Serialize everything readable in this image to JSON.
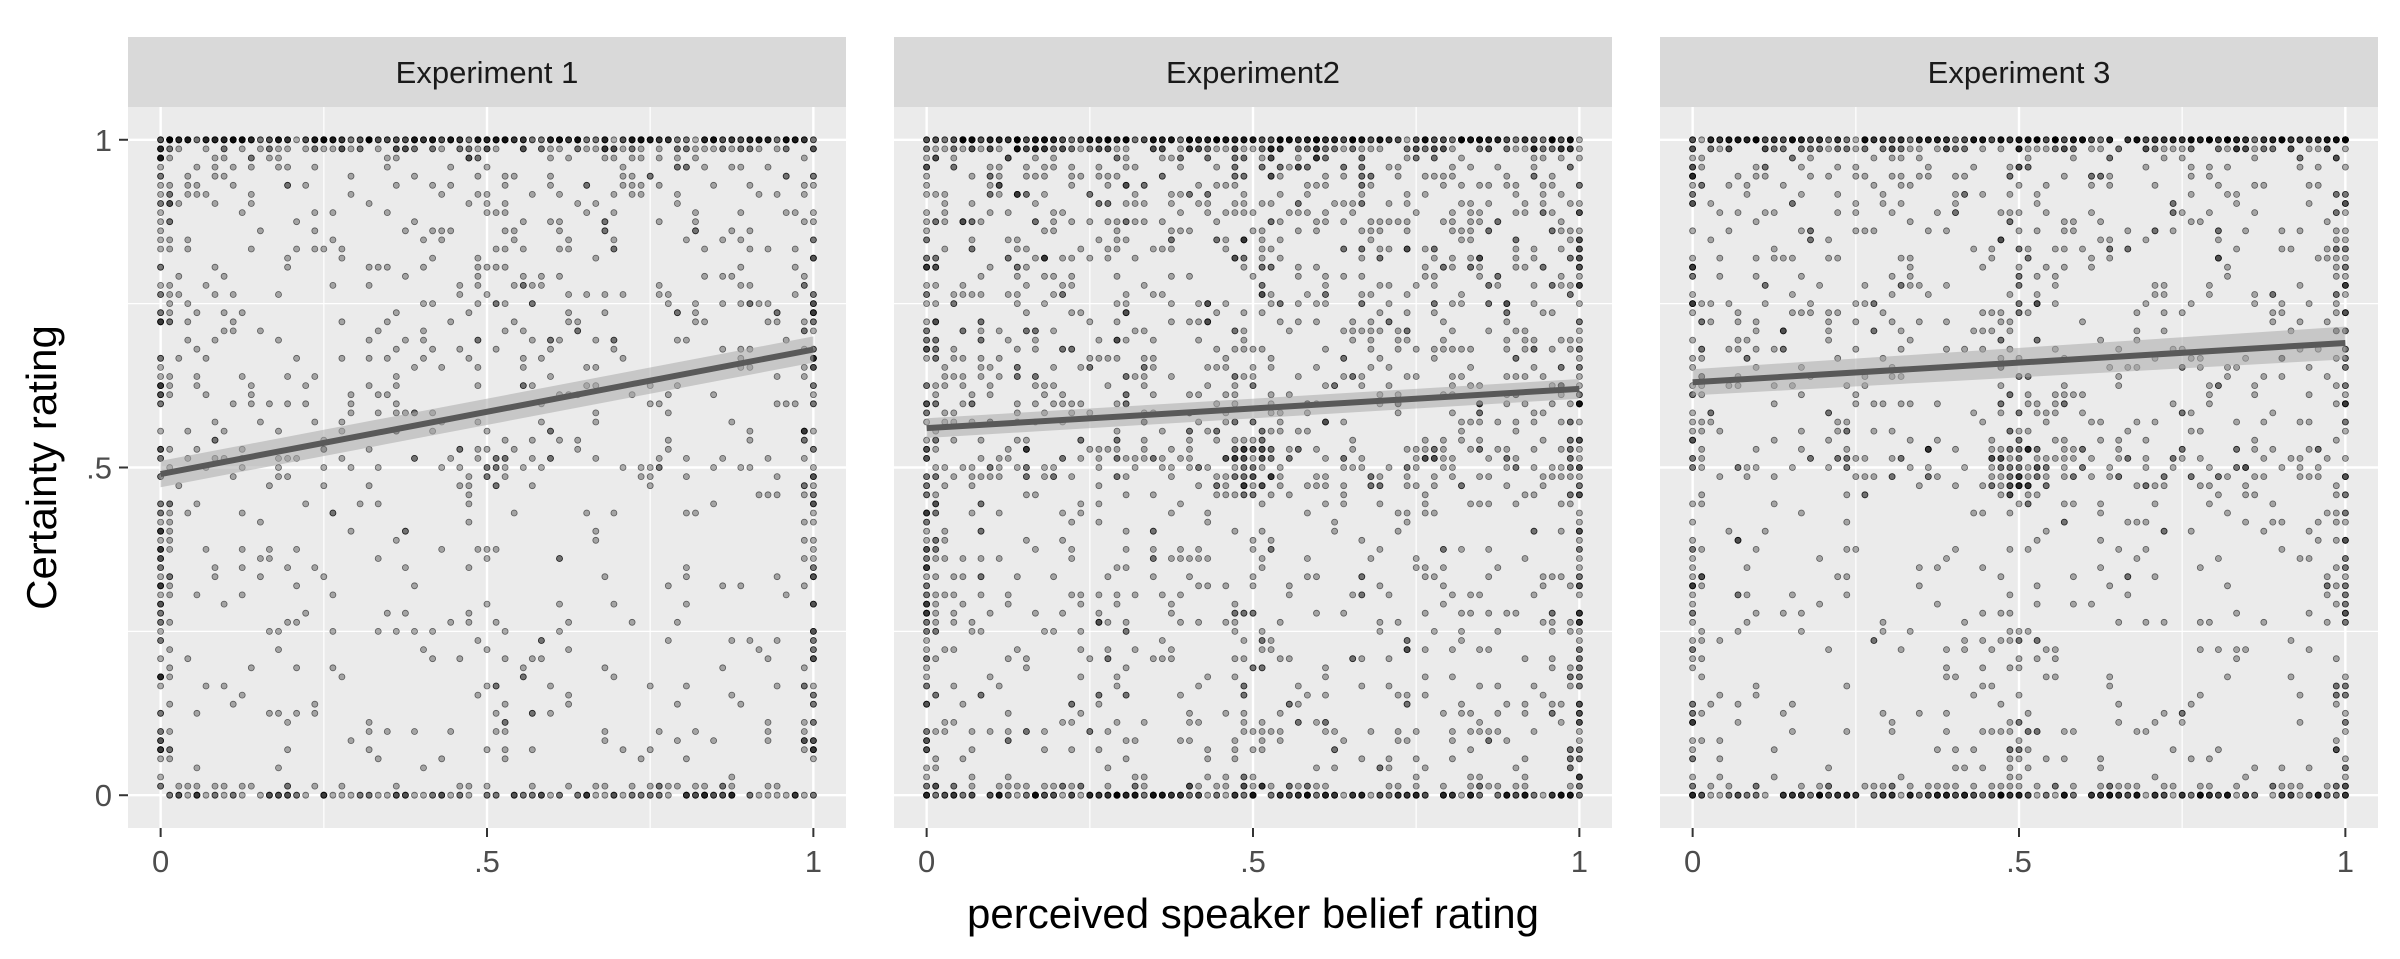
{
  "chart_data": {
    "type": "scatter",
    "xlabel": "perceived speaker belief rating",
    "ylabel": "Certainty rating",
    "xlim": [
      -0.05,
      1.05
    ],
    "ylim": [
      -0.05,
      1.05
    ],
    "x_ticks": [
      0,
      0.5,
      1
    ],
    "x_tick_labels": [
      "0",
      ".5",
      "1"
    ],
    "y_ticks": [
      0,
      0.5,
      1
    ],
    "y_tick_labels": [
      "0",
      ".5",
      "1"
    ],
    "grid": true,
    "facets": [
      {
        "title": "Experiment 1",
        "fit_line": {
          "x": [
            0,
            1
          ],
          "y": [
            0.49,
            0.68
          ],
          "ci_halfwidth": [
            0.02,
            0.02
          ]
        },
        "point_density": {
          "top_row": 0.9,
          "bottom_row": 0.5,
          "mid_cluster": 0.3,
          "x_edges": 0.85,
          "general": 0.25
        }
      },
      {
        "title": "Experiment2",
        "fit_line": {
          "x": [
            0,
            1
          ],
          "y": [
            0.56,
            0.62
          ],
          "ci_halfwidth": [
            0.015,
            0.015
          ]
        },
        "point_density": {
          "top_row": 0.95,
          "bottom_row": 0.85,
          "mid_cluster": 0.85,
          "x_edges": 0.9,
          "general": 0.55
        }
      },
      {
        "title": "Experiment 3",
        "fit_line": {
          "x": [
            0,
            1
          ],
          "y": [
            0.63,
            0.69
          ],
          "ci_halfwidth": [
            0.02,
            0.025
          ]
        },
        "point_density": {
          "top_row": 0.95,
          "bottom_row": 0.8,
          "mid_cluster": 0.9,
          "x_edges": 0.7,
          "general": 0.3
        }
      }
    ],
    "point_style": {
      "color": "#000000",
      "fill_opacity": 0.3
    },
    "fit_line_color": "#595959",
    "ci_color": "#aaaaaa",
    "panel_background": "#ebebeb",
    "strip_background": "#d9d9d9",
    "grid_color": "#ffffff"
  }
}
